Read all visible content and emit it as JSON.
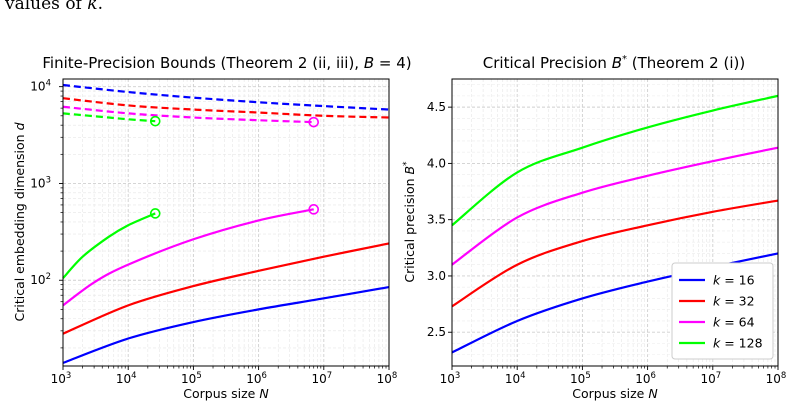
{
  "lead_text": {
    "prefix": "values of ",
    "variable": "k",
    "suffix": "."
  },
  "colors": {
    "k=16": "#0000ff",
    "k=32": "#ff0000",
    "k=64": "#ff00ff",
    "k=128": "#00ff00"
  },
  "chart_data": [
    {
      "type": "line",
      "title_prefix": "Finite-Precision Bounds (Theorem 2 (ii, iii), ",
      "title_var": "B",
      "title_suffix": " = 4)",
      "xlabel_prefix": "Corpus size ",
      "xlabel_var": "N",
      "ylabel_prefix": "Critical embedding dimension ",
      "ylabel_var": "d",
      "xscale": "log",
      "yscale": "log",
      "xlim": [
        1000,
        100000000
      ],
      "ylim": [
        13,
        12000
      ],
      "grid": true,
      "xticks": [
        {
          "value": 1000,
          "base": "10",
          "exp": "3"
        },
        {
          "value": 10000,
          "base": "10",
          "exp": "4"
        },
        {
          "value": 100000,
          "base": "10",
          "exp": "5"
        },
        {
          "value": 1000000,
          "base": "10",
          "exp": "6"
        },
        {
          "value": 10000000,
          "base": "10",
          "exp": "7"
        },
        {
          "value": 100000000,
          "base": "10",
          "exp": "8"
        }
      ],
      "yticks": [
        {
          "value": 100,
          "base": "10",
          "exp": "2"
        },
        {
          "value": 1000,
          "base": "10",
          "exp": "3"
        },
        {
          "value": 10000,
          "base": "10",
          "exp": "4"
        }
      ],
      "series": [
        {
          "key": "k=16",
          "style": "solid",
          "x": [
            1000,
            10000,
            100000,
            1000000,
            10000000,
            100000000
          ],
          "values": [
            14,
            25,
            37,
            50,
            65,
            85
          ]
        },
        {
          "key": "k=32",
          "style": "solid",
          "x": [
            1000,
            10000,
            100000,
            1000000,
            10000000,
            100000000
          ],
          "values": [
            28,
            55,
            87,
            125,
            175,
            240
          ]
        },
        {
          "key": "k=64",
          "style": "solid",
          "x": [
            1000,
            3000,
            10000,
            100000,
            1000000,
            7000000
          ],
          "values": [
            55,
            95,
            145,
            265,
            415,
            540
          ]
        },
        {
          "key": "k=128",
          "style": "solid",
          "x": [
            1000,
            2000,
            5000,
            10000,
            26000
          ],
          "values": [
            105,
            175,
            280,
            370,
            490
          ]
        },
        {
          "key": "k=16",
          "style": "dashed",
          "x": [
            1000,
            10000,
            100000,
            1000000,
            10000000,
            100000000
          ],
          "values": [
            10400,
            8800,
            7700,
            6900,
            6300,
            5800
          ]
        },
        {
          "key": "k=32",
          "style": "dashed",
          "x": [
            1000,
            10000,
            100000,
            1000000,
            10000000,
            100000000
          ],
          "values": [
            7600,
            6400,
            5800,
            5400,
            5000,
            4800
          ]
        },
        {
          "key": "k=64",
          "style": "dashed",
          "x": [
            1000,
            10000,
            100000,
            1000000,
            7000000
          ],
          "values": [
            6200,
            5300,
            4800,
            4500,
            4300
          ]
        },
        {
          "key": "k=128",
          "style": "dashed",
          "x": [
            1000,
            5000,
            10000,
            26000
          ],
          "values": [
            5300,
            4800,
            4600,
            4400
          ]
        }
      ],
      "markers": [
        {
          "key": "k=128",
          "x": 26000,
          "y": 490
        },
        {
          "key": "k=128",
          "x": 26000,
          "y": 4400
        },
        {
          "key": "k=64",
          "x": 7000000,
          "y": 540
        },
        {
          "key": "k=64",
          "x": 7000000,
          "y": 4300
        }
      ]
    },
    {
      "type": "line",
      "title_prefix": "Critical Precision ",
      "title_var": "B",
      "title_sup": "*",
      "title_suffix": " (Theorem 2 (i))",
      "xlabel_prefix": "Corpus size ",
      "xlabel_var": "N",
      "ylabel_prefix": "Critical precision ",
      "ylabel_var": "B",
      "ylabel_sup": "*",
      "xscale": "log",
      "yscale": "linear",
      "xlim": [
        1000,
        100000000
      ],
      "ylim": [
        2.2,
        4.75
      ],
      "grid": true,
      "legend_position": "bottom-right",
      "xticks": [
        {
          "value": 1000,
          "base": "10",
          "exp": "3"
        },
        {
          "value": 10000,
          "base": "10",
          "exp": "4"
        },
        {
          "value": 100000,
          "base": "10",
          "exp": "5"
        },
        {
          "value": 1000000,
          "base": "10",
          "exp": "6"
        },
        {
          "value": 10000000,
          "base": "10",
          "exp": "7"
        },
        {
          "value": 100000000,
          "base": "10",
          "exp": "8"
        }
      ],
      "yticks": [
        {
          "value": 2.5,
          "label": "2.5"
        },
        {
          "value": 3.0,
          "label": "3.0"
        },
        {
          "value": 3.5,
          "label": "3.5"
        },
        {
          "value": 4.0,
          "label": "4.0"
        },
        {
          "value": 4.5,
          "label": "4.5"
        }
      ],
      "series": [
        {
          "key": "k=16",
          "name_var": "k",
          "name_value": " = 16",
          "x": [
            1000,
            10000,
            100000,
            1000000,
            10000000,
            100000000
          ],
          "values": [
            2.32,
            2.6,
            2.8,
            2.95,
            3.08,
            3.2
          ]
        },
        {
          "key": "k=32",
          "name_var": "k",
          "name_value": " = 32",
          "x": [
            1000,
            10000,
            100000,
            1000000,
            10000000,
            100000000
          ],
          "values": [
            2.73,
            3.1,
            3.31,
            3.45,
            3.57,
            3.67
          ]
        },
        {
          "key": "k=64",
          "name_var": "k",
          "name_value": " = 64",
          "x": [
            1000,
            10000,
            100000,
            1000000,
            10000000,
            100000000
          ],
          "values": [
            3.1,
            3.52,
            3.74,
            3.89,
            4.02,
            4.14
          ]
        },
        {
          "key": "k=128",
          "name_var": "k",
          "name_value": " = 128",
          "x": [
            1000,
            10000,
            100000,
            1000000,
            10000000,
            100000000
          ],
          "values": [
            3.45,
            3.92,
            4.14,
            4.32,
            4.47,
            4.6
          ]
        }
      ]
    }
  ]
}
